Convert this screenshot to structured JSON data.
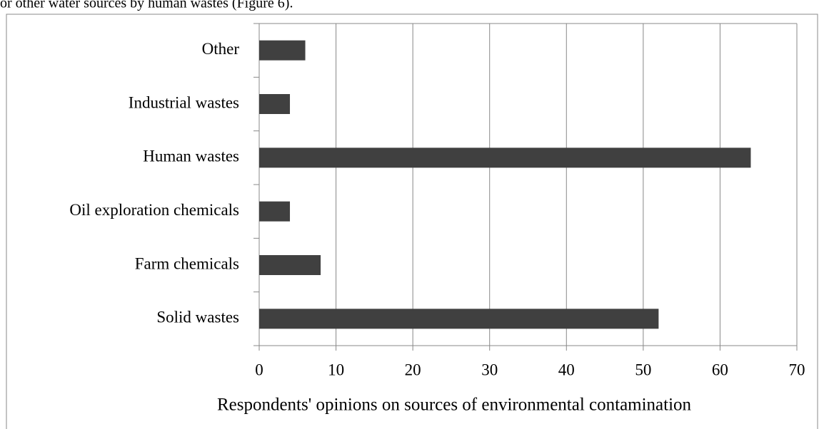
{
  "context_text": "or other water sources by human wastes (Figure 6).",
  "chart_data": {
    "type": "barh",
    "categories": [
      "Other",
      "Industrial wastes",
      "Human wastes",
      "Oil exploration chemicals",
      "Farm chemicals",
      "Solid wastes"
    ],
    "values": [
      6,
      4,
      64,
      4,
      8,
      52
    ],
    "color": "#404040",
    "xlabel": "Respondents' opinions on sources of environmental contamination",
    "xlim": [
      0,
      70
    ],
    "xticks": [
      0,
      10,
      20,
      30,
      40,
      50,
      60,
      70
    ],
    "grid": true
  }
}
